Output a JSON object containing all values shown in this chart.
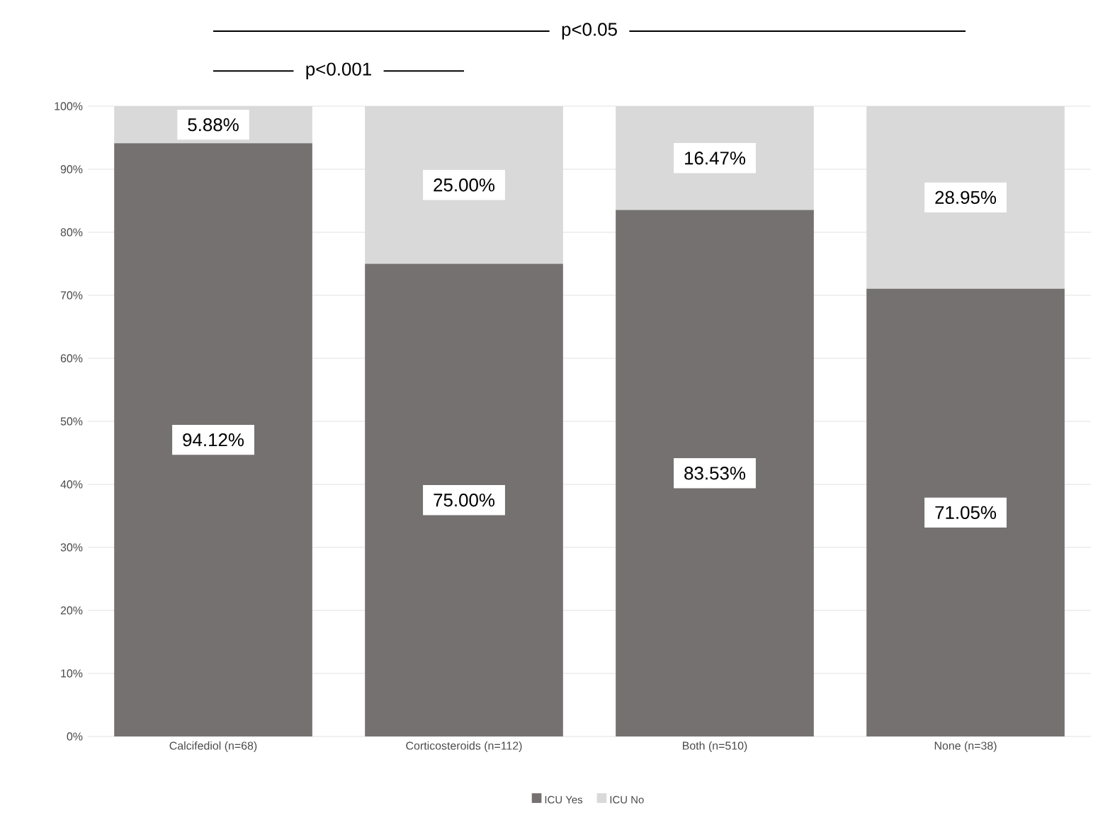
{
  "chart_data": {
    "type": "bar",
    "stacked": true,
    "categories": [
      "Calcifediol (n=68)",
      "Corticosteroids (n=112)",
      "Both (n=510)",
      "None (n=38)"
    ],
    "series": [
      {
        "name": "ICU Yes",
        "color": "#767171",
        "values": [
          94.12,
          75.0,
          83.53,
          71.05
        ],
        "value_labels": [
          "94.12%",
          "75.00%",
          "83.53%",
          "71.05%"
        ]
      },
      {
        "name": "ICU No",
        "color": "#d9d9d9",
        "values": [
          5.88,
          25.0,
          16.47,
          28.95
        ],
        "value_labels": [
          "5.88%",
          "25.00%",
          "16.47%",
          "28.95%"
        ]
      }
    ],
    "ylim": [
      0,
      100
    ],
    "yticks": [
      {
        "value": 0,
        "label": "0%"
      },
      {
        "value": 10,
        "label": "10%"
      },
      {
        "value": 20,
        "label": "20%"
      },
      {
        "value": 30,
        "label": "30%"
      },
      {
        "value": 40,
        "label": "40%"
      },
      {
        "value": 50,
        "label": "50%"
      },
      {
        "value": 60,
        "label": "60%"
      },
      {
        "value": 70,
        "label": "70%"
      },
      {
        "value": 80,
        "label": "80%"
      },
      {
        "value": 90,
        "label": "90%"
      },
      {
        "value": 100,
        "label": "100%"
      }
    ],
    "grid": "y",
    "legend": "bottom",
    "annotations": [
      "p<0.05",
      "p<0.001"
    ]
  }
}
